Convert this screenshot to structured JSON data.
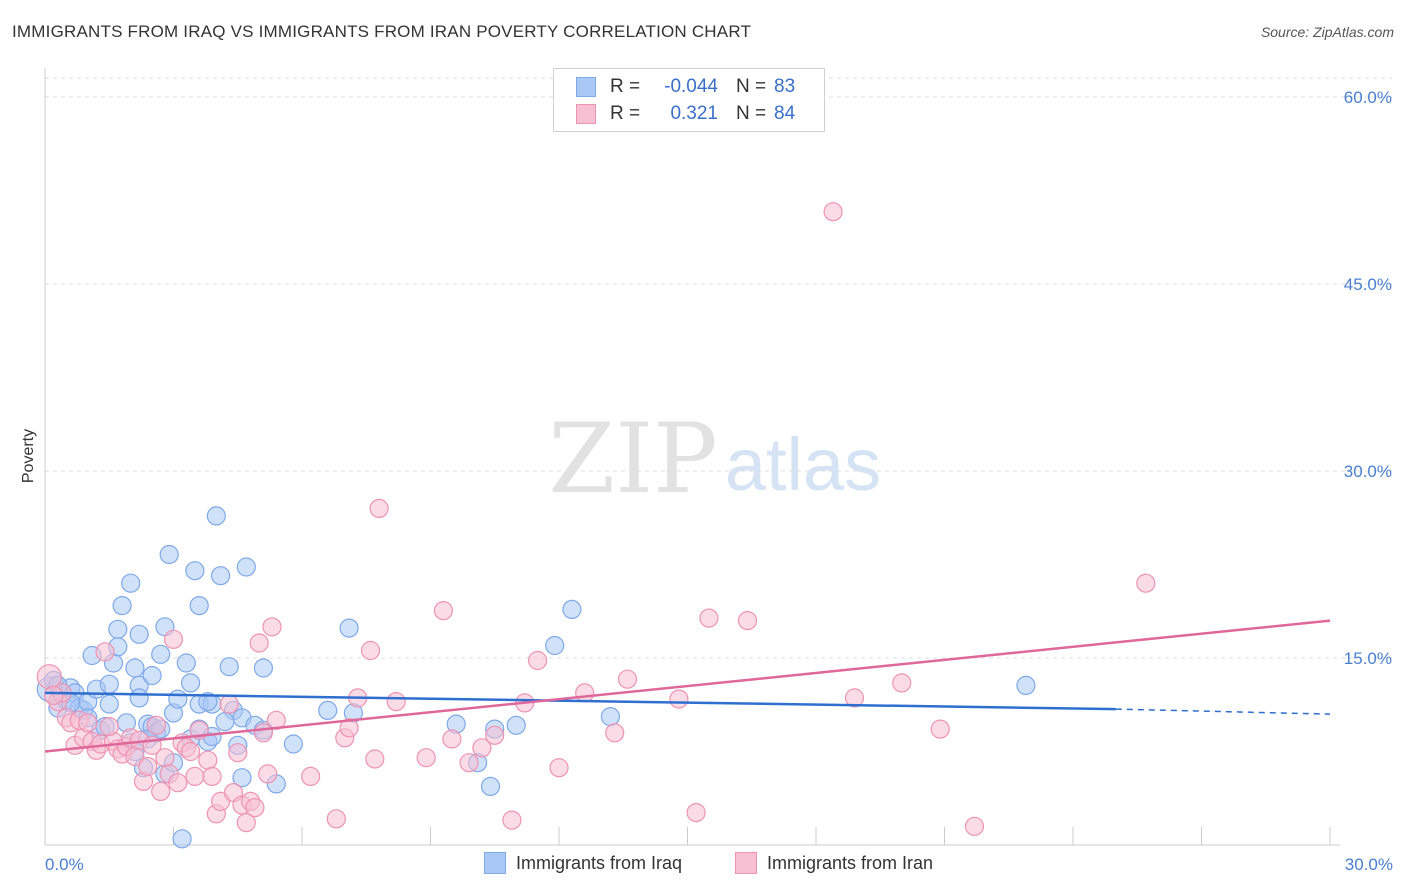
{
  "title": "IMMIGRANTS FROM IRAQ VS IMMIGRANTS FROM IRAN POVERTY CORRELATION CHART",
  "source": "Source: ZipAtlas.com",
  "watermark": {
    "zip": "ZIP",
    "atlas": "atlas"
  },
  "legend": {
    "rows": [
      {
        "r_label": "R =",
        "r_value": "-0.044",
        "n_label": "N =",
        "n_value": "83",
        "color": "#a9c8f5",
        "border": "#7fa9e8"
      },
      {
        "r_label": "R =",
        "r_value": "0.321",
        "n_label": "N =",
        "n_value": "84",
        "color": "#f7bfd2",
        "border": "#ee93b3"
      }
    ]
  },
  "bottom_legend": [
    {
      "label": "Immigrants from Iraq",
      "color": "#a9c8f5",
      "border": "#7fa9e8"
    },
    {
      "label": "Immigrants from Iran",
      "color": "#f7bfd2",
      "border": "#ee93b3"
    }
  ],
  "chart_data": {
    "type": "scatter",
    "title": "IMMIGRANTS FROM IRAQ VS IMMIGRANTS FROM IRAN POVERTY CORRELATION CHART",
    "xlabel": "",
    "ylabel": "Poverty",
    "xlim": [
      0,
      30
    ],
    "ylim": [
      0,
      60
    ],
    "x_ticks": [
      {
        "value": 0,
        "label": "0.0%"
      },
      {
        "value": 30,
        "label": "30.0%"
      }
    ],
    "y_ticks": [
      {
        "value": 15,
        "label": "15.0%"
      },
      {
        "value": 30,
        "label": "30.0%"
      },
      {
        "value": 45,
        "label": "45.0%"
      },
      {
        "value": 60,
        "label": "60.0%"
      }
    ],
    "series": [
      {
        "name": "Immigrants from Iraq",
        "color": "#7fa9e8",
        "fill": "#a9c8f5",
        "line_color": "#2f6fd0",
        "trend": {
          "x": [
            0,
            25.0
          ],
          "y": [
            12.2,
            10.9
          ]
        },
        "trend_dashed": {
          "x": [
            25.0,
            30.0
          ],
          "y": [
            10.9,
            10.5
          ]
        },
        "points": [
          [
            0.1,
            12.5
          ],
          [
            0.2,
            13.2
          ],
          [
            0.3,
            11.0
          ],
          [
            0.4,
            12.0
          ],
          [
            0.5,
            11.6
          ],
          [
            0.6,
            12.6
          ],
          [
            0.7,
            12.2
          ],
          [
            0.8,
            11.0
          ],
          [
            0.9,
            10.8
          ],
          [
            1.0,
            11.5
          ],
          [
            1.1,
            15.2
          ],
          [
            1.2,
            12.5
          ],
          [
            1.3,
            9.2
          ],
          [
            1.4,
            9.5
          ],
          [
            1.5,
            12.9
          ],
          [
            1.6,
            14.6
          ],
          [
            1.7,
            17.3
          ],
          [
            1.7,
            15.9
          ],
          [
            1.8,
            19.2
          ],
          [
            1.9,
            9.8
          ],
          [
            2.0,
            8.2
          ],
          [
            2.0,
            21.0
          ],
          [
            2.1,
            7.5
          ],
          [
            2.1,
            14.2
          ],
          [
            2.2,
            16.9
          ],
          [
            2.2,
            12.8
          ],
          [
            2.3,
            6.2
          ],
          [
            2.4,
            9.7
          ],
          [
            2.5,
            9.5
          ],
          [
            2.5,
            13.6
          ],
          [
            2.6,
            9.0
          ],
          [
            2.7,
            9.3
          ],
          [
            2.7,
            15.3
          ],
          [
            2.8,
            5.7
          ],
          [
            2.8,
            17.5
          ],
          [
            2.9,
            23.3
          ],
          [
            3.0,
            10.6
          ],
          [
            3.0,
            6.6
          ],
          [
            3.1,
            11.7
          ],
          [
            3.2,
            0.5
          ],
          [
            3.3,
            14.6
          ],
          [
            3.4,
            13.0
          ],
          [
            3.4,
            8.5
          ],
          [
            3.5,
            22.0
          ],
          [
            3.6,
            19.2
          ],
          [
            3.6,
            11.3
          ],
          [
            3.6,
            9.3
          ],
          [
            3.8,
            8.3
          ],
          [
            3.9,
            8.7
          ],
          [
            3.9,
            11.3
          ],
          [
            4.0,
            26.4
          ],
          [
            4.1,
            21.6
          ],
          [
            4.3,
            14.3
          ],
          [
            4.4,
            10.8
          ],
          [
            4.5,
            8.0
          ],
          [
            4.6,
            10.2
          ],
          [
            4.6,
            5.4
          ],
          [
            4.7,
            22.3
          ],
          [
            4.9,
            9.6
          ],
          [
            5.1,
            14.2
          ],
          [
            5.1,
            9.2
          ],
          [
            5.4,
            4.9
          ],
          [
            5.8,
            8.1
          ],
          [
            6.6,
            10.8
          ],
          [
            7.1,
            17.4
          ],
          [
            7.2,
            10.6
          ],
          [
            9.6,
            9.7
          ],
          [
            10.1,
            6.6
          ],
          [
            10.4,
            4.7
          ],
          [
            10.5,
            9.3
          ],
          [
            11.0,
            9.6
          ],
          [
            11.9,
            16.0
          ],
          [
            12.3,
            18.9
          ],
          [
            13.2,
            10.3
          ],
          [
            22.9,
            12.8
          ],
          [
            0.3,
            12.8
          ],
          [
            0.6,
            11.4
          ],
          [
            1.0,
            10.2
          ],
          [
            2.4,
            8.5
          ],
          [
            3.8,
            11.5
          ],
          [
            1.5,
            11.3
          ],
          [
            2.2,
            11.8
          ],
          [
            4.2,
            9.9
          ]
        ]
      },
      {
        "name": "Immigrants from Iran",
        "color": "#ee93b3",
        "fill": "#f7bfd2",
        "line_color": "#e0679a",
        "trend": {
          "x": [
            0,
            30.0
          ],
          "y": [
            7.5,
            18.0
          ]
        },
        "points": [
          [
            0.1,
            13.5
          ],
          [
            0.3,
            11.5
          ],
          [
            0.4,
            12.2
          ],
          [
            0.5,
            10.2
          ],
          [
            0.6,
            9.8
          ],
          [
            0.7,
            8.0
          ],
          [
            0.8,
            10.0
          ],
          [
            0.9,
            8.6
          ],
          [
            1.0,
            9.8
          ],
          [
            1.1,
            8.3
          ],
          [
            1.2,
            7.6
          ],
          [
            1.3,
            8.1
          ],
          [
            1.4,
            15.5
          ],
          [
            1.6,
            8.3
          ],
          [
            1.7,
            7.7
          ],
          [
            1.8,
            7.3
          ],
          [
            1.9,
            7.9
          ],
          [
            2.0,
            8.6
          ],
          [
            2.1,
            7.1
          ],
          [
            2.2,
            8.4
          ],
          [
            2.3,
            5.1
          ],
          [
            2.4,
            6.3
          ],
          [
            2.5,
            8.0
          ],
          [
            2.6,
            9.6
          ],
          [
            2.7,
            4.3
          ],
          [
            2.8,
            7.0
          ],
          [
            2.9,
            5.7
          ],
          [
            3.0,
            16.5
          ],
          [
            3.1,
            5.0
          ],
          [
            3.2,
            8.2
          ],
          [
            3.3,
            7.8
          ],
          [
            3.4,
            7.5
          ],
          [
            3.5,
            5.5
          ],
          [
            3.6,
            9.2
          ],
          [
            3.8,
            6.8
          ],
          [
            3.9,
            5.5
          ],
          [
            4.0,
            2.5
          ],
          [
            4.1,
            3.5
          ],
          [
            4.3,
            11.3
          ],
          [
            4.4,
            4.2
          ],
          [
            4.5,
            7.4
          ],
          [
            4.6,
            3.2
          ],
          [
            4.7,
            1.8
          ],
          [
            4.8,
            3.5
          ],
          [
            4.9,
            3.0
          ],
          [
            5.0,
            16.2
          ],
          [
            5.1,
            9.0
          ],
          [
            5.2,
            5.7
          ],
          [
            5.3,
            17.5
          ],
          [
            5.4,
            10.0
          ],
          [
            6.2,
            5.5
          ],
          [
            6.8,
            2.1
          ],
          [
            7.0,
            8.6
          ],
          [
            7.1,
            9.4
          ],
          [
            7.3,
            11.8
          ],
          [
            7.6,
            15.6
          ],
          [
            7.7,
            6.9
          ],
          [
            7.8,
            27.0
          ],
          [
            8.2,
            11.5
          ],
          [
            8.9,
            7.0
          ],
          [
            9.3,
            18.8
          ],
          [
            9.5,
            8.5
          ],
          [
            9.9,
            6.6
          ],
          [
            10.2,
            7.8
          ],
          [
            10.5,
            8.8
          ],
          [
            10.9,
            2.0
          ],
          [
            11.2,
            11.4
          ],
          [
            11.5,
            14.8
          ],
          [
            12.0,
            6.2
          ],
          [
            12.6,
            12.2
          ],
          [
            13.3,
            9.0
          ],
          [
            13.6,
            13.3
          ],
          [
            14.8,
            11.7
          ],
          [
            15.2,
            2.6
          ],
          [
            15.5,
            18.2
          ],
          [
            16.4,
            18.0
          ],
          [
            18.4,
            50.8
          ],
          [
            18.9,
            11.8
          ],
          [
            20.0,
            13.0
          ],
          [
            20.9,
            9.3
          ],
          [
            21.7,
            1.5
          ],
          [
            25.7,
            21.0
          ],
          [
            0.2,
            12.0
          ],
          [
            1.5,
            9.5
          ]
        ]
      }
    ]
  }
}
